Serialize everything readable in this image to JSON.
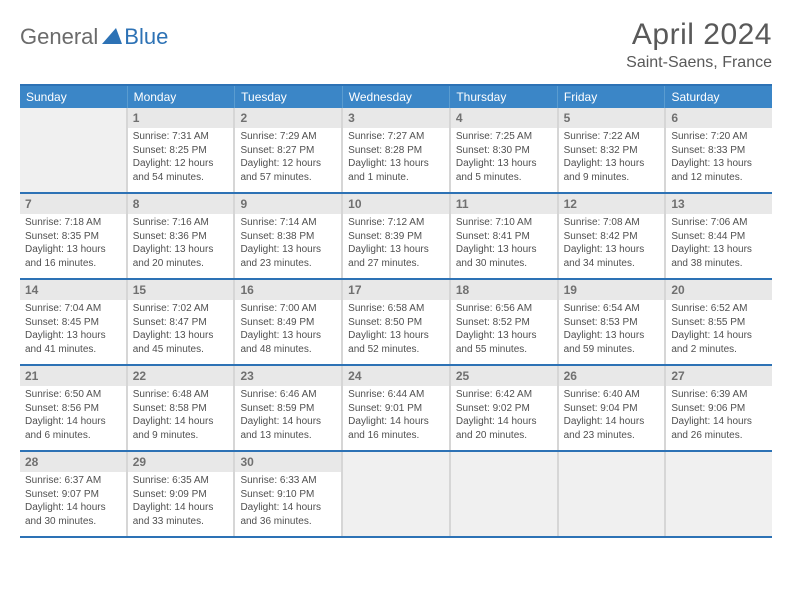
{
  "logo": {
    "general": "General",
    "blue": "Blue"
  },
  "title": "April 2024",
  "location": "Saint-Saens, France",
  "colors": {
    "header_bg": "#3b86c7",
    "border_dark": "#2d72b5",
    "cell_border": "#d6d6d6",
    "blank_bg": "#f0f0f0",
    "daynum_bg": "#e8e8e8"
  },
  "daysOfWeek": [
    "Sunday",
    "Monday",
    "Tuesday",
    "Wednesday",
    "Thursday",
    "Friday",
    "Saturday"
  ],
  "weeks": [
    [
      {
        "blank": true
      },
      {
        "n": "1",
        "sunrise": "7:31 AM",
        "sunset": "8:25 PM",
        "dl1": "Daylight: 12 hours",
        "dl2": "and 54 minutes."
      },
      {
        "n": "2",
        "sunrise": "7:29 AM",
        "sunset": "8:27 PM",
        "dl1": "Daylight: 12 hours",
        "dl2": "and 57 minutes."
      },
      {
        "n": "3",
        "sunrise": "7:27 AM",
        "sunset": "8:28 PM",
        "dl1": "Daylight: 13 hours",
        "dl2": "and 1 minute."
      },
      {
        "n": "4",
        "sunrise": "7:25 AM",
        "sunset": "8:30 PM",
        "dl1": "Daylight: 13 hours",
        "dl2": "and 5 minutes."
      },
      {
        "n": "5",
        "sunrise": "7:22 AM",
        "sunset": "8:32 PM",
        "dl1": "Daylight: 13 hours",
        "dl2": "and 9 minutes."
      },
      {
        "n": "6",
        "sunrise": "7:20 AM",
        "sunset": "8:33 PM",
        "dl1": "Daylight: 13 hours",
        "dl2": "and 12 minutes."
      }
    ],
    [
      {
        "n": "7",
        "sunrise": "7:18 AM",
        "sunset": "8:35 PM",
        "dl1": "Daylight: 13 hours",
        "dl2": "and 16 minutes."
      },
      {
        "n": "8",
        "sunrise": "7:16 AM",
        "sunset": "8:36 PM",
        "dl1": "Daylight: 13 hours",
        "dl2": "and 20 minutes."
      },
      {
        "n": "9",
        "sunrise": "7:14 AM",
        "sunset": "8:38 PM",
        "dl1": "Daylight: 13 hours",
        "dl2": "and 23 minutes."
      },
      {
        "n": "10",
        "sunrise": "7:12 AM",
        "sunset": "8:39 PM",
        "dl1": "Daylight: 13 hours",
        "dl2": "and 27 minutes."
      },
      {
        "n": "11",
        "sunrise": "7:10 AM",
        "sunset": "8:41 PM",
        "dl1": "Daylight: 13 hours",
        "dl2": "and 30 minutes."
      },
      {
        "n": "12",
        "sunrise": "7:08 AM",
        "sunset": "8:42 PM",
        "dl1": "Daylight: 13 hours",
        "dl2": "and 34 minutes."
      },
      {
        "n": "13",
        "sunrise": "7:06 AM",
        "sunset": "8:44 PM",
        "dl1": "Daylight: 13 hours",
        "dl2": "and 38 minutes."
      }
    ],
    [
      {
        "n": "14",
        "sunrise": "7:04 AM",
        "sunset": "8:45 PM",
        "dl1": "Daylight: 13 hours",
        "dl2": "and 41 minutes."
      },
      {
        "n": "15",
        "sunrise": "7:02 AM",
        "sunset": "8:47 PM",
        "dl1": "Daylight: 13 hours",
        "dl2": "and 45 minutes."
      },
      {
        "n": "16",
        "sunrise": "7:00 AM",
        "sunset": "8:49 PM",
        "dl1": "Daylight: 13 hours",
        "dl2": "and 48 minutes."
      },
      {
        "n": "17",
        "sunrise": "6:58 AM",
        "sunset": "8:50 PM",
        "dl1": "Daylight: 13 hours",
        "dl2": "and 52 minutes."
      },
      {
        "n": "18",
        "sunrise": "6:56 AM",
        "sunset": "8:52 PM",
        "dl1": "Daylight: 13 hours",
        "dl2": "and 55 minutes."
      },
      {
        "n": "19",
        "sunrise": "6:54 AM",
        "sunset": "8:53 PM",
        "dl1": "Daylight: 13 hours",
        "dl2": "and 59 minutes."
      },
      {
        "n": "20",
        "sunrise": "6:52 AM",
        "sunset": "8:55 PM",
        "dl1": "Daylight: 14 hours",
        "dl2": "and 2 minutes."
      }
    ],
    [
      {
        "n": "21",
        "sunrise": "6:50 AM",
        "sunset": "8:56 PM",
        "dl1": "Daylight: 14 hours",
        "dl2": "and 6 minutes."
      },
      {
        "n": "22",
        "sunrise": "6:48 AM",
        "sunset": "8:58 PM",
        "dl1": "Daylight: 14 hours",
        "dl2": "and 9 minutes."
      },
      {
        "n": "23",
        "sunrise": "6:46 AM",
        "sunset": "8:59 PM",
        "dl1": "Daylight: 14 hours",
        "dl2": "and 13 minutes."
      },
      {
        "n": "24",
        "sunrise": "6:44 AM",
        "sunset": "9:01 PM",
        "dl1": "Daylight: 14 hours",
        "dl2": "and 16 minutes."
      },
      {
        "n": "25",
        "sunrise": "6:42 AM",
        "sunset": "9:02 PM",
        "dl1": "Daylight: 14 hours",
        "dl2": "and 20 minutes."
      },
      {
        "n": "26",
        "sunrise": "6:40 AM",
        "sunset": "9:04 PM",
        "dl1": "Daylight: 14 hours",
        "dl2": "and 23 minutes."
      },
      {
        "n": "27",
        "sunrise": "6:39 AM",
        "sunset": "9:06 PM",
        "dl1": "Daylight: 14 hours",
        "dl2": "and 26 minutes."
      }
    ],
    [
      {
        "n": "28",
        "sunrise": "6:37 AM",
        "sunset": "9:07 PM",
        "dl1": "Daylight: 14 hours",
        "dl2": "and 30 minutes."
      },
      {
        "n": "29",
        "sunrise": "6:35 AM",
        "sunset": "9:09 PM",
        "dl1": "Daylight: 14 hours",
        "dl2": "and 33 minutes."
      },
      {
        "n": "30",
        "sunrise": "6:33 AM",
        "sunset": "9:10 PM",
        "dl1": "Daylight: 14 hours",
        "dl2": "and 36 minutes."
      },
      {
        "blank": true
      },
      {
        "blank": true
      },
      {
        "blank": true
      },
      {
        "blank": true
      }
    ]
  ],
  "labels": {
    "sunrise": "Sunrise: ",
    "sunset": "Sunset: "
  }
}
